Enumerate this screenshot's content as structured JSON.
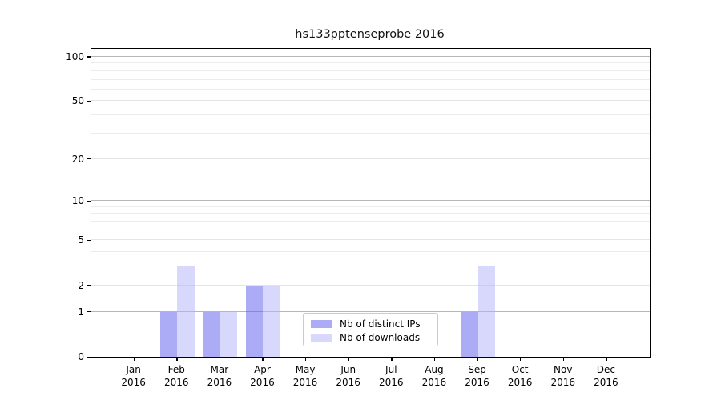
{
  "title": "hs133pptenseprobe 2016",
  "chart_data": {
    "type": "bar",
    "title": "hs133pptenseprobe 2016",
    "categories": [
      "Jan 2016",
      "Feb 2016",
      "Mar 2016",
      "Apr 2016",
      "May 2016",
      "Jun 2016",
      "Jul 2016",
      "Aug 2016",
      "Sep 2016",
      "Oct 2016",
      "Nov 2016",
      "Dec 2016"
    ],
    "x_tick_month": [
      "Jan",
      "Feb",
      "Mar",
      "Apr",
      "May",
      "Jun",
      "Jul",
      "Aug",
      "Sep",
      "Oct",
      "Nov",
      "Dec"
    ],
    "x_tick_year": "2016",
    "series": [
      {
        "name": "Nb of distinct IPs",
        "color": "rgba(88,88,238,0.5)",
        "values": [
          0,
          1,
          1,
          2,
          0,
          0,
          0,
          0,
          1,
          0,
          0,
          0
        ]
      },
      {
        "name": "Nb of downloads",
        "color": "rgba(178,178,250,0.5)",
        "values": [
          0,
          3,
          1,
          2,
          0,
          0,
          0,
          0,
          3,
          0,
          0,
          0
        ]
      }
    ],
    "xlabel": "",
    "ylabel": "",
    "yscale": "log1p",
    "ylim": [
      0,
      113
    ],
    "yticks": [
      0,
      1,
      2,
      5,
      10,
      20,
      50,
      100
    ],
    "minor_yticks": [
      3,
      4,
      6,
      7,
      8,
      9,
      30,
      40,
      60,
      70,
      80,
      90
    ],
    "grid": true,
    "legend_position": "lower center"
  },
  "legend": {
    "items": [
      {
        "label": "Nb of distinct IPs",
        "color": "rgba(88,88,238,0.5)"
      },
      {
        "label": "Nb of downloads",
        "color": "rgba(178,178,250,0.5)"
      }
    ]
  },
  "colors": {
    "background": "#ffffff",
    "spine": "#000000",
    "grid_pow10": "#b6b6b6",
    "grid_minor": "#ebebeb",
    "bar_distinct_ips": "rgba(88,88,238,0.5)",
    "bar_downloads": "rgba(178,178,250,0.5)"
  }
}
